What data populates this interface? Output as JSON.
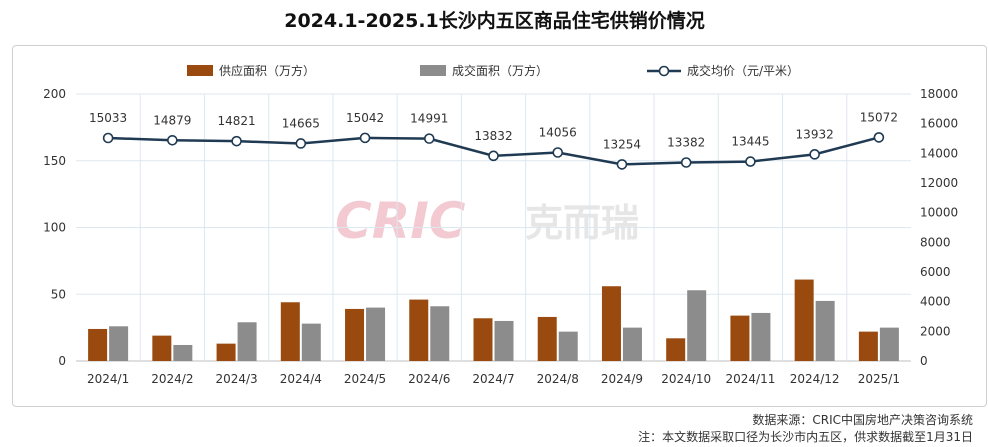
{
  "title": "2024.1-2025.1长沙内五区商品住宅供销价情况",
  "watermark": {
    "brand": "CRIC",
    "cn": "克而瑞"
  },
  "source": "数据来源：CRIC中国房地产决策咨询系统",
  "note": "注：本文数据采取口径为长沙市内五区，供求数据截至1月31日",
  "colors": {
    "supply": "#9A4A0E",
    "deal": "#8C8C8C",
    "price": "#1F3A52",
    "grid": "#DDE7EF"
  },
  "chart_data": {
    "type": "bar",
    "categories": [
      "2024/1",
      "2024/2",
      "2024/3",
      "2024/4",
      "2024/5",
      "2024/6",
      "2024/7",
      "2024/8",
      "2024/9",
      "2024/10",
      "2024/11",
      "2024/12",
      "2025/1"
    ],
    "series": [
      {
        "name": "供应面积（万方）",
        "type": "bar",
        "axis": "left",
        "values": [
          24,
          19,
          13,
          44,
          39,
          46,
          32,
          33,
          56,
          17,
          34,
          61,
          22
        ]
      },
      {
        "name": "成交面积（万方）",
        "type": "bar",
        "axis": "left",
        "values": [
          26,
          12,
          29,
          28,
          40,
          41,
          30,
          22,
          25,
          53,
          36,
          45,
          25
        ]
      },
      {
        "name": "成交均价（元/平米）",
        "type": "line",
        "axis": "right",
        "values": [
          15033,
          14879,
          14821,
          14665,
          15042,
          14991,
          13832,
          14056,
          13254,
          13382,
          13445,
          13932,
          15072
        ],
        "labels": [
          "15033",
          "14879",
          "14821",
          "14665",
          "15042",
          "14991",
          "13832",
          "14056",
          "13254",
          "13382",
          "13445",
          "13932",
          "15072"
        ]
      }
    ],
    "y_left": {
      "range": [
        0,
        200
      ],
      "ticks": [
        "0",
        "50",
        "100",
        "150",
        "200"
      ]
    },
    "y_right": {
      "range": [
        0,
        18000
      ],
      "ticks": [
        "0",
        "2000",
        "4000",
        "6000",
        "8000",
        "10000",
        "12000",
        "14000",
        "16000",
        "18000"
      ]
    },
    "grid": true,
    "legend": "top"
  }
}
